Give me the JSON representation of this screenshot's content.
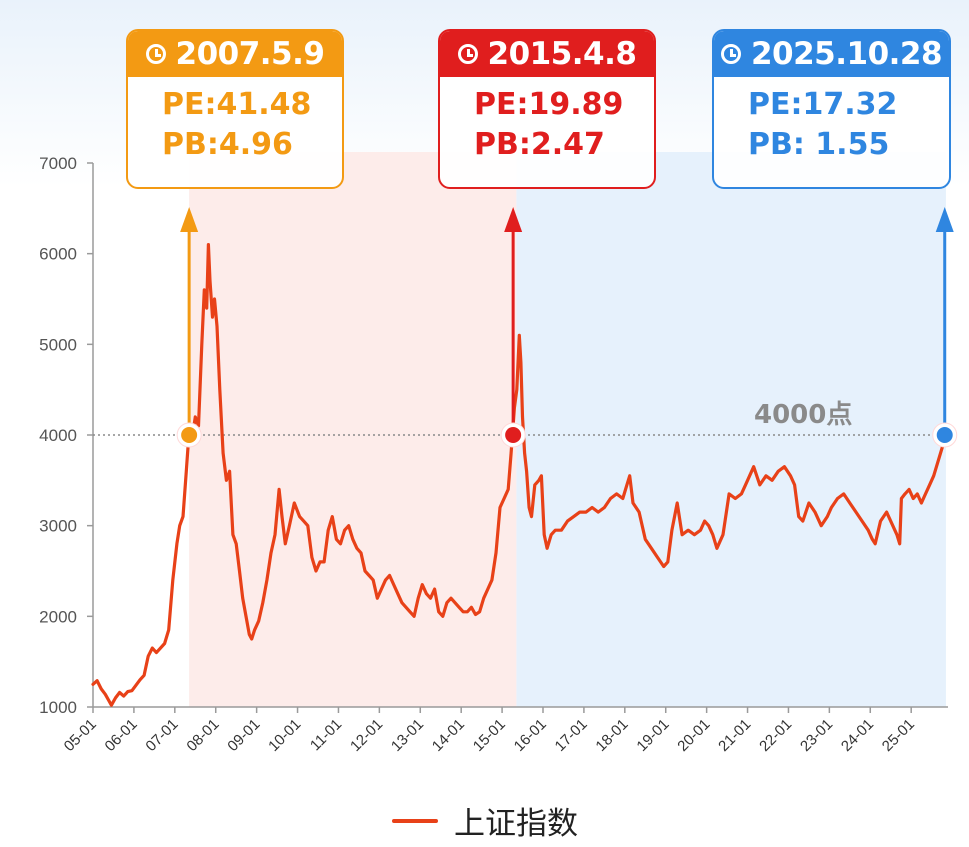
{
  "chart_data": {
    "type": "line",
    "title": "",
    "xlabel": "",
    "ylabel": "",
    "ylim": [
      1000,
      7000
    ],
    "yticks": [
      1000,
      2000,
      3000,
      4000,
      5000,
      6000,
      7000
    ],
    "x_tick_labels": [
      "05-01",
      "06-01",
      "07-01",
      "08-01",
      "09-01",
      "10-01",
      "11-01",
      "12-01",
      "13-01",
      "14-01",
      "15-01",
      "16-01",
      "17-01",
      "18-01",
      "19-01",
      "20-01",
      "21-01",
      "22-01",
      "23-01",
      "24-01",
      "25-01"
    ],
    "x_range_years": [
      2005.0,
      2025.9
    ],
    "reference_line": {
      "value": 4000,
      "label": "4000点"
    },
    "legend": {
      "position": "bottom-center"
    },
    "series": [
      {
        "name": "上证指数",
        "color": "#e84118",
        "points": [
          [
            2005.0,
            1250
          ],
          [
            2005.1,
            1290
          ],
          [
            2005.2,
            1200
          ],
          [
            2005.3,
            1140
          ],
          [
            2005.4,
            1060
          ],
          [
            2005.45,
            1020
          ],
          [
            2005.55,
            1100
          ],
          [
            2005.65,
            1160
          ],
          [
            2005.75,
            1120
          ],
          [
            2005.85,
            1170
          ],
          [
            2005.95,
            1180
          ],
          [
            2006.05,
            1240
          ],
          [
            2006.15,
            1300
          ],
          [
            2006.25,
            1350
          ],
          [
            2006.35,
            1560
          ],
          [
            2006.45,
            1650
          ],
          [
            2006.55,
            1600
          ],
          [
            2006.65,
            1650
          ],
          [
            2006.75,
            1700
          ],
          [
            2006.85,
            1850
          ],
          [
            2006.95,
            2400
          ],
          [
            2007.05,
            2800
          ],
          [
            2007.12,
            3000
          ],
          [
            2007.2,
            3100
          ],
          [
            2007.28,
            3600
          ],
          [
            2007.36,
            4100
          ],
          [
            2007.42,
            3950
          ],
          [
            2007.5,
            4200
          ],
          [
            2007.58,
            4100
          ],
          [
            2007.66,
            5000
          ],
          [
            2007.72,
            5600
          ],
          [
            2007.78,
            5400
          ],
          [
            2007.82,
            6100
          ],
          [
            2007.86,
            5700
          ],
          [
            2007.92,
            5300
          ],
          [
            2007.97,
            5500
          ],
          [
            2008.03,
            5200
          ],
          [
            2008.1,
            4500
          ],
          [
            2008.18,
            3800
          ],
          [
            2008.26,
            3500
          ],
          [
            2008.34,
            3600
          ],
          [
            2008.42,
            2900
          ],
          [
            2008.5,
            2800
          ],
          [
            2008.58,
            2500
          ],
          [
            2008.66,
            2200
          ],
          [
            2008.74,
            2000
          ],
          [
            2008.82,
            1800
          ],
          [
            2008.88,
            1750
          ],
          [
            2008.95,
            1850
          ],
          [
            2009.05,
            1950
          ],
          [
            2009.15,
            2150
          ],
          [
            2009.25,
            2400
          ],
          [
            2009.35,
            2700
          ],
          [
            2009.45,
            2900
          ],
          [
            2009.55,
            3400
          ],
          [
            2009.62,
            3100
          ],
          [
            2009.7,
            2800
          ],
          [
            2009.8,
            3000
          ],
          [
            2009.92,
            3250
          ],
          [
            2010.05,
            3100
          ],
          [
            2010.15,
            3050
          ],
          [
            2010.25,
            3000
          ],
          [
            2010.35,
            2650
          ],
          [
            2010.45,
            2500
          ],
          [
            2010.55,
            2600
          ],
          [
            2010.65,
            2600
          ],
          [
            2010.75,
            2950
          ],
          [
            2010.85,
            3100
          ],
          [
            2010.95,
            2850
          ],
          [
            2011.05,
            2800
          ],
          [
            2011.15,
            2950
          ],
          [
            2011.25,
            3000
          ],
          [
            2011.35,
            2850
          ],
          [
            2011.45,
            2750
          ],
          [
            2011.55,
            2700
          ],
          [
            2011.65,
            2500
          ],
          [
            2011.75,
            2450
          ],
          [
            2011.85,
            2400
          ],
          [
            2011.95,
            2200
          ],
          [
            2012.05,
            2300
          ],
          [
            2012.15,
            2400
          ],
          [
            2012.25,
            2450
          ],
          [
            2012.35,
            2350
          ],
          [
            2012.45,
            2250
          ],
          [
            2012.55,
            2150
          ],
          [
            2012.65,
            2100
          ],
          [
            2012.75,
            2050
          ],
          [
            2012.85,
            2000
          ],
          [
            2012.95,
            2200
          ],
          [
            2013.05,
            2350
          ],
          [
            2013.15,
            2250
          ],
          [
            2013.25,
            2200
          ],
          [
            2013.35,
            2300
          ],
          [
            2013.45,
            2050
          ],
          [
            2013.55,
            2000
          ],
          [
            2013.65,
            2150
          ],
          [
            2013.75,
            2200
          ],
          [
            2013.85,
            2150
          ],
          [
            2013.95,
            2100
          ],
          [
            2014.05,
            2050
          ],
          [
            2014.15,
            2050
          ],
          [
            2014.25,
            2100
          ],
          [
            2014.35,
            2020
          ],
          [
            2014.45,
            2050
          ],
          [
            2014.55,
            2200
          ],
          [
            2014.65,
            2300
          ],
          [
            2014.75,
            2400
          ],
          [
            2014.85,
            2700
          ],
          [
            2014.95,
            3200
          ],
          [
            2015.05,
            3300
          ],
          [
            2015.15,
            3400
          ],
          [
            2015.22,
            3800
          ],
          [
            2015.3,
            4300
          ],
          [
            2015.36,
            4500
          ],
          [
            2015.42,
            5100
          ],
          [
            2015.46,
            4800
          ],
          [
            2015.5,
            4200
          ],
          [
            2015.55,
            3800
          ],
          [
            2015.6,
            3600
          ],
          [
            2015.66,
            3200
          ],
          [
            2015.72,
            3100
          ],
          [
            2015.8,
            3450
          ],
          [
            2015.9,
            3500
          ],
          [
            2015.96,
            3550
          ],
          [
            2016.03,
            2900
          ],
          [
            2016.1,
            2750
          ],
          [
            2016.2,
            2900
          ],
          [
            2016.3,
            2950
          ],
          [
            2016.45,
            2950
          ],
          [
            2016.6,
            3050
          ],
          [
            2016.75,
            3100
          ],
          [
            2016.9,
            3150
          ],
          [
            2017.05,
            3150
          ],
          [
            2017.2,
            3200
          ],
          [
            2017.35,
            3150
          ],
          [
            2017.5,
            3200
          ],
          [
            2017.65,
            3300
          ],
          [
            2017.8,
            3350
          ],
          [
            2017.95,
            3300
          ],
          [
            2018.05,
            3450
          ],
          [
            2018.12,
            3550
          ],
          [
            2018.2,
            3250
          ],
          [
            2018.35,
            3150
          ],
          [
            2018.5,
            2850
          ],
          [
            2018.65,
            2750
          ],
          [
            2018.8,
            2650
          ],
          [
            2018.95,
            2550
          ],
          [
            2019.05,
            2600
          ],
          [
            2019.15,
            2950
          ],
          [
            2019.28,
            3250
          ],
          [
            2019.4,
            2900
          ],
          [
            2019.55,
            2950
          ],
          [
            2019.7,
            2900
          ],
          [
            2019.85,
            2950
          ],
          [
            2019.95,
            3050
          ],
          [
            2020.05,
            3000
          ],
          [
            2020.15,
            2900
          ],
          [
            2020.25,
            2750
          ],
          [
            2020.4,
            2900
          ],
          [
            2020.55,
            3350
          ],
          [
            2020.7,
            3300
          ],
          [
            2020.85,
            3350
          ],
          [
            2020.95,
            3450
          ],
          [
            2021.05,
            3550
          ],
          [
            2021.15,
            3650
          ],
          [
            2021.3,
            3450
          ],
          [
            2021.45,
            3550
          ],
          [
            2021.6,
            3500
          ],
          [
            2021.75,
            3600
          ],
          [
            2021.9,
            3650
          ],
          [
            2022.05,
            3550
          ],
          [
            2022.15,
            3450
          ],
          [
            2022.25,
            3100
          ],
          [
            2022.35,
            3050
          ],
          [
            2022.5,
            3250
          ],
          [
            2022.65,
            3150
          ],
          [
            2022.8,
            3000
          ],
          [
            2022.95,
            3100
          ],
          [
            2023.05,
            3200
          ],
          [
            2023.2,
            3300
          ],
          [
            2023.35,
            3350
          ],
          [
            2023.5,
            3250
          ],
          [
            2023.65,
            3150
          ],
          [
            2023.8,
            3050
          ],
          [
            2023.95,
            2950
          ],
          [
            2024.05,
            2850
          ],
          [
            2024.12,
            2800
          ],
          [
            2024.25,
            3050
          ],
          [
            2024.4,
            3150
          ],
          [
            2024.55,
            3000
          ],
          [
            2024.65,
            2900
          ],
          [
            2024.72,
            2800
          ],
          [
            2024.76,
            3300
          ],
          [
            2024.85,
            3350
          ],
          [
            2024.95,
            3400
          ],
          [
            2025.05,
            3300
          ],
          [
            2025.15,
            3350
          ],
          [
            2025.25,
            3250
          ],
          [
            2025.35,
            3350
          ],
          [
            2025.45,
            3450
          ],
          [
            2025.55,
            3550
          ],
          [
            2025.65,
            3700
          ],
          [
            2025.75,
            3850
          ],
          [
            2025.82,
            3950
          ]
        ]
      }
    ],
    "highlight_ranges": [
      {
        "from": 2007.35,
        "to": 2015.35,
        "color": "#fdecea"
      },
      {
        "from": 2015.35,
        "to": 2025.85,
        "color": "#e6f1fc"
      }
    ],
    "markers": [
      {
        "x": 2007.35,
        "y": 4000,
        "color": "#f39a13",
        "date": "2007.5.9",
        "pe": "PE:41.48",
        "pb": "PB:4.96"
      },
      {
        "x": 2015.27,
        "y": 4000,
        "color": "#e01e1e",
        "date": "2015.4.8",
        "pe": "PE:19.89",
        "pb": "PB:2.47"
      },
      {
        "x": 2025.82,
        "y": 4000,
        "color": "#2f86e0",
        "date": "2025.10.28",
        "pe": "PE:17.32",
        "pb": "PB: 1.55"
      }
    ]
  }
}
